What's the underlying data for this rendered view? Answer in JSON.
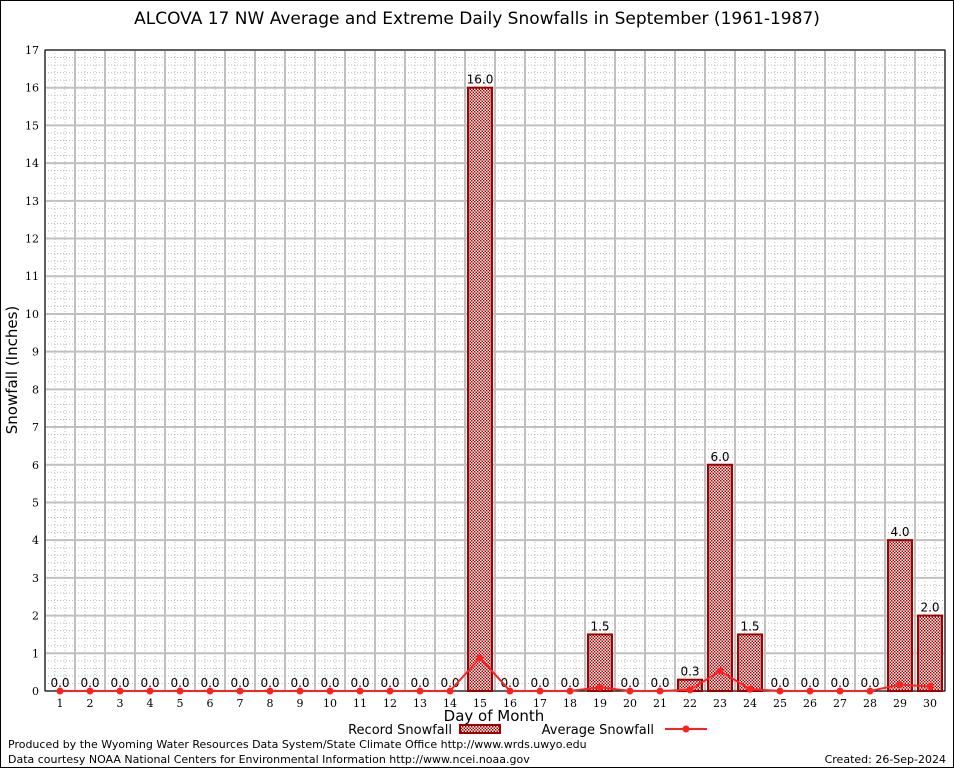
{
  "chart_data": {
    "type": "bar",
    "title": "ALCOVA 17 NW Average and Extreme Daily Snowfalls in September (1961-1987)",
    "xlabel": "Day of Month",
    "ylabel": "Snowfall (Inches)",
    "ylim": [
      0,
      17
    ],
    "yticks": [
      0,
      1,
      2,
      3,
      4,
      5,
      6,
      7,
      8,
      9,
      10,
      11,
      12,
      13,
      14,
      15,
      16,
      17
    ],
    "categories": [
      1,
      2,
      3,
      4,
      5,
      6,
      7,
      8,
      9,
      10,
      11,
      12,
      13,
      14,
      15,
      16,
      17,
      18,
      19,
      20,
      21,
      22,
      23,
      24,
      25,
      26,
      27,
      28,
      29,
      30
    ],
    "grid": true,
    "legend_position": "bottom-center",
    "series": [
      {
        "name": "Record Snowfall",
        "kind": "bar",
        "color": "#cc0000",
        "values": [
          0,
          0,
          0,
          0,
          0,
          0,
          0,
          0,
          0,
          0,
          0,
          0,
          0,
          0,
          16.0,
          0,
          0,
          0,
          1.5,
          0,
          0,
          0.3,
          6.0,
          1.5,
          0,
          0,
          0,
          0,
          4.0,
          2.0
        ],
        "labels": [
          "0.0",
          "0.0",
          "0.0",
          "0.0",
          "0.0",
          "0.0",
          "0.0",
          "0.0",
          "0.0",
          "0.0",
          "0.0",
          "0.0",
          "0.0",
          "0.0",
          "16.0",
          "0.0",
          "0.0",
          "0.0",
          "1.5",
          "0.0",
          "0.0",
          "0.3",
          "6.0",
          "1.5",
          "0.0",
          "0.0",
          "0.0",
          "0.0",
          "4.0",
          "2.0"
        ]
      },
      {
        "name": "Average Snowfall",
        "kind": "line",
        "color": "#ff2020",
        "values": [
          0,
          0,
          0,
          0,
          0,
          0,
          0,
          0,
          0,
          0,
          0,
          0,
          0,
          0,
          0.88,
          0,
          0,
          0,
          0.1,
          0,
          0,
          0.03,
          0.53,
          0.05,
          0,
          0,
          0,
          0,
          0.17,
          0.12
        ]
      }
    ]
  },
  "footer": {
    "produced": "Produced by the Wyoming Water Resources Data System/State Climate Office http://www.wrds.uwyo.edu",
    "courtesy": "Data courtesy NOAA National Centers for Environmental Information http://www.ncei.noaa.gov",
    "created": "Created: 26-Sep-2024"
  }
}
